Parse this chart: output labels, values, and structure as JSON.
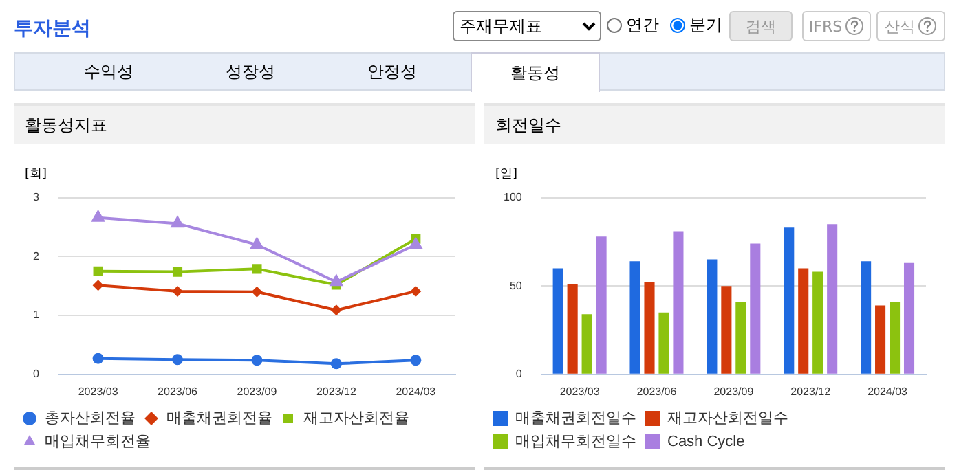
{
  "chart_data": [
    {
      "type": "other",
      "annotations": [
        "투자분석",
        "주재무제표",
        "연간",
        "분기",
        "검색",
        "IFRS",
        "산식",
        "수익성",
        "성장성",
        "안정성",
        "활동성"
      ]
    },
    {
      "type": "line",
      "title": "활동성지표",
      "ylabel": "[회]",
      "categories": [
        "2023/03",
        "2023/06",
        "2023/09",
        "2023/12",
        "2024/03"
      ],
      "ylim": [
        0,
        3
      ],
      "yticks": [
        0,
        1,
        2,
        3
      ],
      "grid": "y",
      "legend": "bottom",
      "series": [
        {
          "name": "총자산회전율",
          "color": "#2a6fe0",
          "marker": "circle",
          "values": [
            0.27,
            0.25,
            0.24,
            0.18,
            0.24
          ]
        },
        {
          "name": "매출채권회전율",
          "color": "#d43a0a",
          "marker": "diamond",
          "values": [
            1.51,
            1.41,
            1.4,
            1.09,
            1.41
          ]
        },
        {
          "name": "재고자산회전율",
          "color": "#8cc20f",
          "marker": "square",
          "values": [
            1.75,
            1.74,
            1.79,
            1.52,
            2.3
          ]
        },
        {
          "name": "매입채무회전율",
          "color": "#a787e0",
          "marker": "triangle",
          "values": [
            2.66,
            2.56,
            2.2,
            1.57,
            2.2
          ]
        }
      ]
    },
    {
      "type": "bar",
      "title": "회전일수",
      "ylabel": "[일]",
      "categories": [
        "2023/03",
        "2023/06",
        "2023/09",
        "2023/12",
        "2024/03"
      ],
      "ylim": [
        0,
        100
      ],
      "yticks": [
        0,
        50,
        100
      ],
      "grid": "y",
      "legend": "bottom",
      "series": [
        {
          "name": "매출채권회전일수",
          "color": "#1f6ae0",
          "values": [
            60,
            64,
            65,
            83,
            64
          ]
        },
        {
          "name": "재고자산회전일수",
          "color": "#d43a0a",
          "values": [
            51,
            52,
            50,
            60,
            39
          ]
        },
        {
          "name": "매입채무회전일수",
          "color": "#8cc20f",
          "values": [
            34,
            35,
            41,
            58,
            41
          ]
        },
        {
          "name": "Cash Cycle",
          "color": "#a97ee0",
          "values": [
            78,
            81,
            74,
            85,
            63
          ]
        }
      ]
    }
  ]
}
